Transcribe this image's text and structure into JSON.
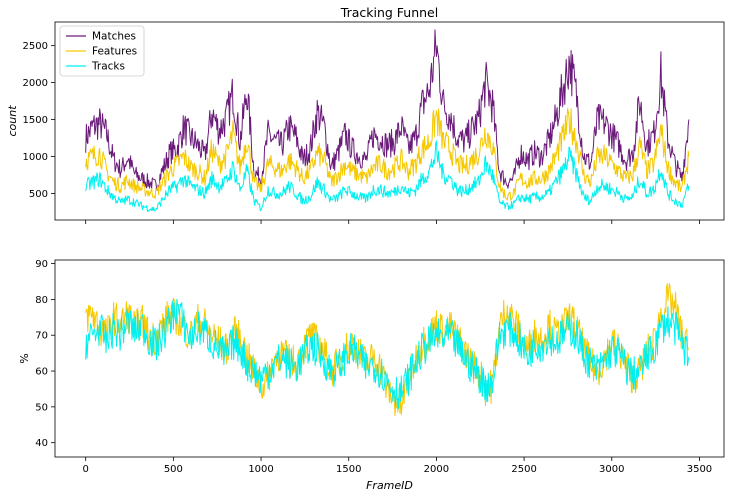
{
  "chart_data": [
    {
      "type": "line",
      "title": "Tracking Funnel",
      "ylabel": "count",
      "xlabel": "",
      "xlim": [
        -175,
        3640
      ],
      "ylim": [
        140,
        2820
      ],
      "xticks": [
        0,
        500,
        1000,
        1500,
        2000,
        2500,
        3000,
        3500
      ],
      "yticks": [
        500,
        1000,
        1500,
        2000,
        2500
      ],
      "show_xtick_labels": false,
      "legend": "top-left",
      "grid": false,
      "series": [
        {
          "name": "Matches",
          "color": "#6a1b7a",
          "x": [
            0,
            40,
            80,
            120,
            160,
            200,
            240,
            280,
            320,
            360,
            400,
            440,
            480,
            520,
            560,
            600,
            640,
            680,
            720,
            760,
            800,
            840,
            880,
            920,
            960,
            1000,
            1040,
            1080,
            1120,
            1160,
            1200,
            1240,
            1280,
            1320,
            1360,
            1400,
            1440,
            1480,
            1520,
            1560,
            1600,
            1640,
            1680,
            1720,
            1760,
            1800,
            1840,
            1880,
            1920,
            1960,
            2000,
            2040,
            2080,
            2120,
            2160,
            2200,
            2240,
            2280,
            2320,
            2360,
            2400,
            2440,
            2480,
            2520,
            2560,
            2600,
            2640,
            2680,
            2720,
            2760,
            2800,
            2840,
            2880,
            2920,
            2960,
            3000,
            3040,
            3080,
            3120,
            3160,
            3200,
            3240,
            3280,
            3320,
            3360,
            3400,
            3440
          ],
          "values": [
            1250,
            1400,
            1450,
            1300,
            950,
            820,
            980,
            760,
            700,
            650,
            600,
            820,
            1050,
            1100,
            1400,
            1250,
            1150,
            1000,
            1600,
            1350,
            1500,
            1850,
            1200,
            1900,
            800,
            700,
            1300,
            1200,
            1150,
            1400,
            1250,
            950,
            1100,
            1600,
            1400,
            850,
            1050,
            1300,
            1100,
            1000,
            950,
            1300,
            1250,
            1150,
            1200,
            1400,
            1100,
            1250,
            1700,
            1900,
            2500,
            1700,
            1550,
            1250,
            1200,
            1350,
            1500,
            2000,
            1700,
            800,
            650,
            700,
            1050,
            950,
            1050,
            1000,
            1200,
            1500,
            1900,
            2300,
            1800,
            1000,
            900,
            1500,
            1450,
            1300,
            1150,
            950,
            1050,
            1750,
            1150,
            1300,
            2100,
            1250,
            900,
            700,
            1500
          ]
        },
        {
          "name": "Features",
          "color": "#f5c800",
          "x": [
            0,
            40,
            80,
            120,
            160,
            200,
            240,
            280,
            320,
            360,
            400,
            440,
            480,
            520,
            560,
            600,
            640,
            680,
            720,
            760,
            800,
            840,
            880,
            920,
            960,
            1000,
            1040,
            1080,
            1120,
            1160,
            1200,
            1240,
            1280,
            1320,
            1360,
            1400,
            1440,
            1480,
            1520,
            1560,
            1600,
            1640,
            1680,
            1720,
            1760,
            1800,
            1840,
            1880,
            1920,
            1960,
            2000,
            2040,
            2080,
            2120,
            2160,
            2200,
            2240,
            2280,
            2320,
            2360,
            2400,
            2440,
            2480,
            2520,
            2560,
            2600,
            2640,
            2680,
            2720,
            2760,
            2800,
            2840,
            2880,
            2920,
            2960,
            3000,
            3040,
            3080,
            3120,
            3160,
            3200,
            3240,
            3280,
            3320,
            3360,
            3400,
            3440
          ],
          "values": [
            950,
            1000,
            1050,
            800,
            650,
            600,
            680,
            600,
            560,
            520,
            500,
            650,
            800,
            900,
            1000,
            850,
            800,
            700,
            1100,
            900,
            1000,
            1300,
            850,
            1250,
            650,
            560,
            900,
            850,
            800,
            950,
            850,
            700,
            800,
            1050,
            950,
            650,
            750,
            900,
            800,
            750,
            700,
            850,
            900,
            800,
            850,
            950,
            800,
            900,
            1100,
            1200,
            1550,
            1200,
            1100,
            900,
            850,
            950,
            1050,
            1350,
            1150,
            600,
            450,
            500,
            700,
            650,
            700,
            700,
            800,
            1000,
            1250,
            1500,
            1200,
            750,
            650,
            1000,
            1000,
            900,
            800,
            700,
            750,
            1150,
            800,
            900,
            1350,
            850,
            650,
            550,
            1000
          ]
        },
        {
          "name": "Tracks",
          "color": "#00f0f0",
          "x": [
            0,
            40,
            80,
            120,
            160,
            200,
            240,
            280,
            320,
            360,
            400,
            440,
            480,
            520,
            560,
            600,
            640,
            680,
            720,
            760,
            800,
            840,
            880,
            920,
            960,
            1000,
            1040,
            1080,
            1120,
            1160,
            1200,
            1240,
            1280,
            1320,
            1360,
            1400,
            1440,
            1480,
            1520,
            1560,
            1600,
            1640,
            1680,
            1720,
            1760,
            1800,
            1840,
            1880,
            1920,
            1960,
            2000,
            2040,
            2080,
            2120,
            2160,
            2200,
            2240,
            2280,
            2320,
            2360,
            2400,
            2440,
            2480,
            2520,
            2560,
            2600,
            2640,
            2680,
            2720,
            2760,
            2800,
            2840,
            2880,
            2920,
            2960,
            3000,
            3040,
            3080,
            3120,
            3160,
            3200,
            3240,
            3280,
            3320,
            3360,
            3400,
            3440
          ],
          "values": [
            600,
            650,
            700,
            550,
            450,
            380,
            420,
            380,
            330,
            300,
            280,
            420,
            550,
            600,
            700,
            600,
            550,
            500,
            700,
            600,
            650,
            850,
            550,
            800,
            400,
            300,
            550,
            500,
            500,
            600,
            500,
            400,
            450,
            650,
            550,
            400,
            450,
            550,
            500,
            450,
            420,
            550,
            550,
            500,
            520,
            600,
            500,
            550,
            700,
            800,
            1050,
            750,
            700,
            550,
            520,
            600,
            650,
            900,
            750,
            380,
            320,
            350,
            450,
            420,
            450,
            450,
            500,
            650,
            800,
            1000,
            750,
            450,
            400,
            600,
            600,
            550,
            500,
            420,
            450,
            700,
            500,
            550,
            850,
            500,
            400,
            350,
            600
          ]
        }
      ]
    },
    {
      "type": "line",
      "title": "",
      "ylabel": "%",
      "xlabel": "FrameID",
      "xlim": [
        -175,
        3640
      ],
      "ylim": [
        36,
        91
      ],
      "xticks": [
        0,
        500,
        1000,
        1500,
        2000,
        2500,
        3000,
        3500
      ],
      "yticks": [
        40,
        50,
        60,
        70,
        80,
        90
      ],
      "show_xtick_labels": true,
      "grid": false,
      "series": [
        {
          "name": "Features",
          "color": "#f5c800",
          "x": [
            0,
            40,
            80,
            120,
            160,
            200,
            240,
            280,
            320,
            360,
            400,
            440,
            480,
            520,
            560,
            600,
            640,
            680,
            720,
            760,
            800,
            840,
            880,
            920,
            960,
            1000,
            1040,
            1080,
            1120,
            1160,
            1200,
            1240,
            1280,
            1320,
            1360,
            1400,
            1440,
            1480,
            1520,
            1560,
            1600,
            1640,
            1680,
            1720,
            1760,
            1800,
            1840,
            1880,
            1920,
            1960,
            2000,
            2040,
            2080,
            2120,
            2160,
            2200,
            2240,
            2280,
            2320,
            2360,
            2400,
            2440,
            2480,
            2520,
            2560,
            2600,
            2640,
            2680,
            2720,
            2760,
            2800,
            2840,
            2880,
            2920,
            2960,
            3000,
            3040,
            3080,
            3120,
            3160,
            3200,
            3240,
            3280,
            3320,
            3360,
            3400,
            3440
          ],
          "values": [
            75,
            76,
            72,
            70,
            75,
            73,
            76,
            72,
            74,
            70,
            69,
            73,
            76,
            75,
            72,
            70,
            74,
            73,
            70,
            68,
            66,
            71,
            69,
            64,
            60,
            56,
            58,
            64,
            65,
            63,
            62,
            66,
            70,
            68,
            65,
            60,
            62,
            66,
            68,
            65,
            62,
            64,
            61,
            55,
            52,
            50,
            58,
            63,
            68,
            70,
            73,
            71,
            72,
            69,
            66,
            62,
            60,
            55,
            56,
            72,
            78,
            74,
            70,
            66,
            70,
            69,
            73,
            70,
            72,
            75,
            72,
            66,
            62,
            60,
            64,
            68,
            66,
            62,
            58,
            60,
            65,
            68,
            76,
            80,
            78,
            70,
            66
          ]
        },
        {
          "name": "Tracks",
          "color": "#00f0f0",
          "x": [
            0,
            40,
            80,
            120,
            160,
            200,
            240,
            280,
            320,
            360,
            400,
            440,
            480,
            520,
            560,
            600,
            640,
            680,
            720,
            760,
            800,
            840,
            880,
            920,
            960,
            1000,
            1040,
            1080,
            1120,
            1160,
            1200,
            1240,
            1280,
            1320,
            1360,
            1400,
            1440,
            1480,
            1520,
            1560,
            1600,
            1640,
            1680,
            1720,
            1760,
            1800,
            1840,
            1880,
            1920,
            1960,
            2000,
            2040,
            2080,
            2120,
            2160,
            2200,
            2240,
            2280,
            2320,
            2360,
            2400,
            2440,
            2480,
            2520,
            2560,
            2600,
            2640,
            2680,
            2720,
            2760,
            2800,
            2840,
            2880,
            2920,
            2960,
            3000,
            3040,
            3080,
            3120,
            3160,
            3200,
            3240,
            3280,
            3320,
            3360,
            3400,
            3440
          ],
          "values": [
            68,
            70,
            72,
            68,
            72,
            70,
            74,
            71,
            73,
            69,
            67,
            70,
            74,
            78,
            73,
            69,
            72,
            71,
            68,
            66,
            64,
            68,
            67,
            62,
            60,
            58,
            60,
            62,
            64,
            62,
            61,
            64,
            67,
            66,
            63,
            60,
            61,
            64,
            66,
            64,
            61,
            62,
            60,
            57,
            55,
            54,
            58,
            62,
            66,
            68,
            70,
            69,
            70,
            67,
            64,
            61,
            59,
            56,
            57,
            70,
            72,
            71,
            68,
            64,
            68,
            67,
            70,
            68,
            70,
            72,
            70,
            65,
            62,
            60,
            63,
            66,
            65,
            61,
            59,
            60,
            64,
            66,
            72,
            74,
            72,
            68,
            64
          ]
        }
      ]
    }
  ]
}
